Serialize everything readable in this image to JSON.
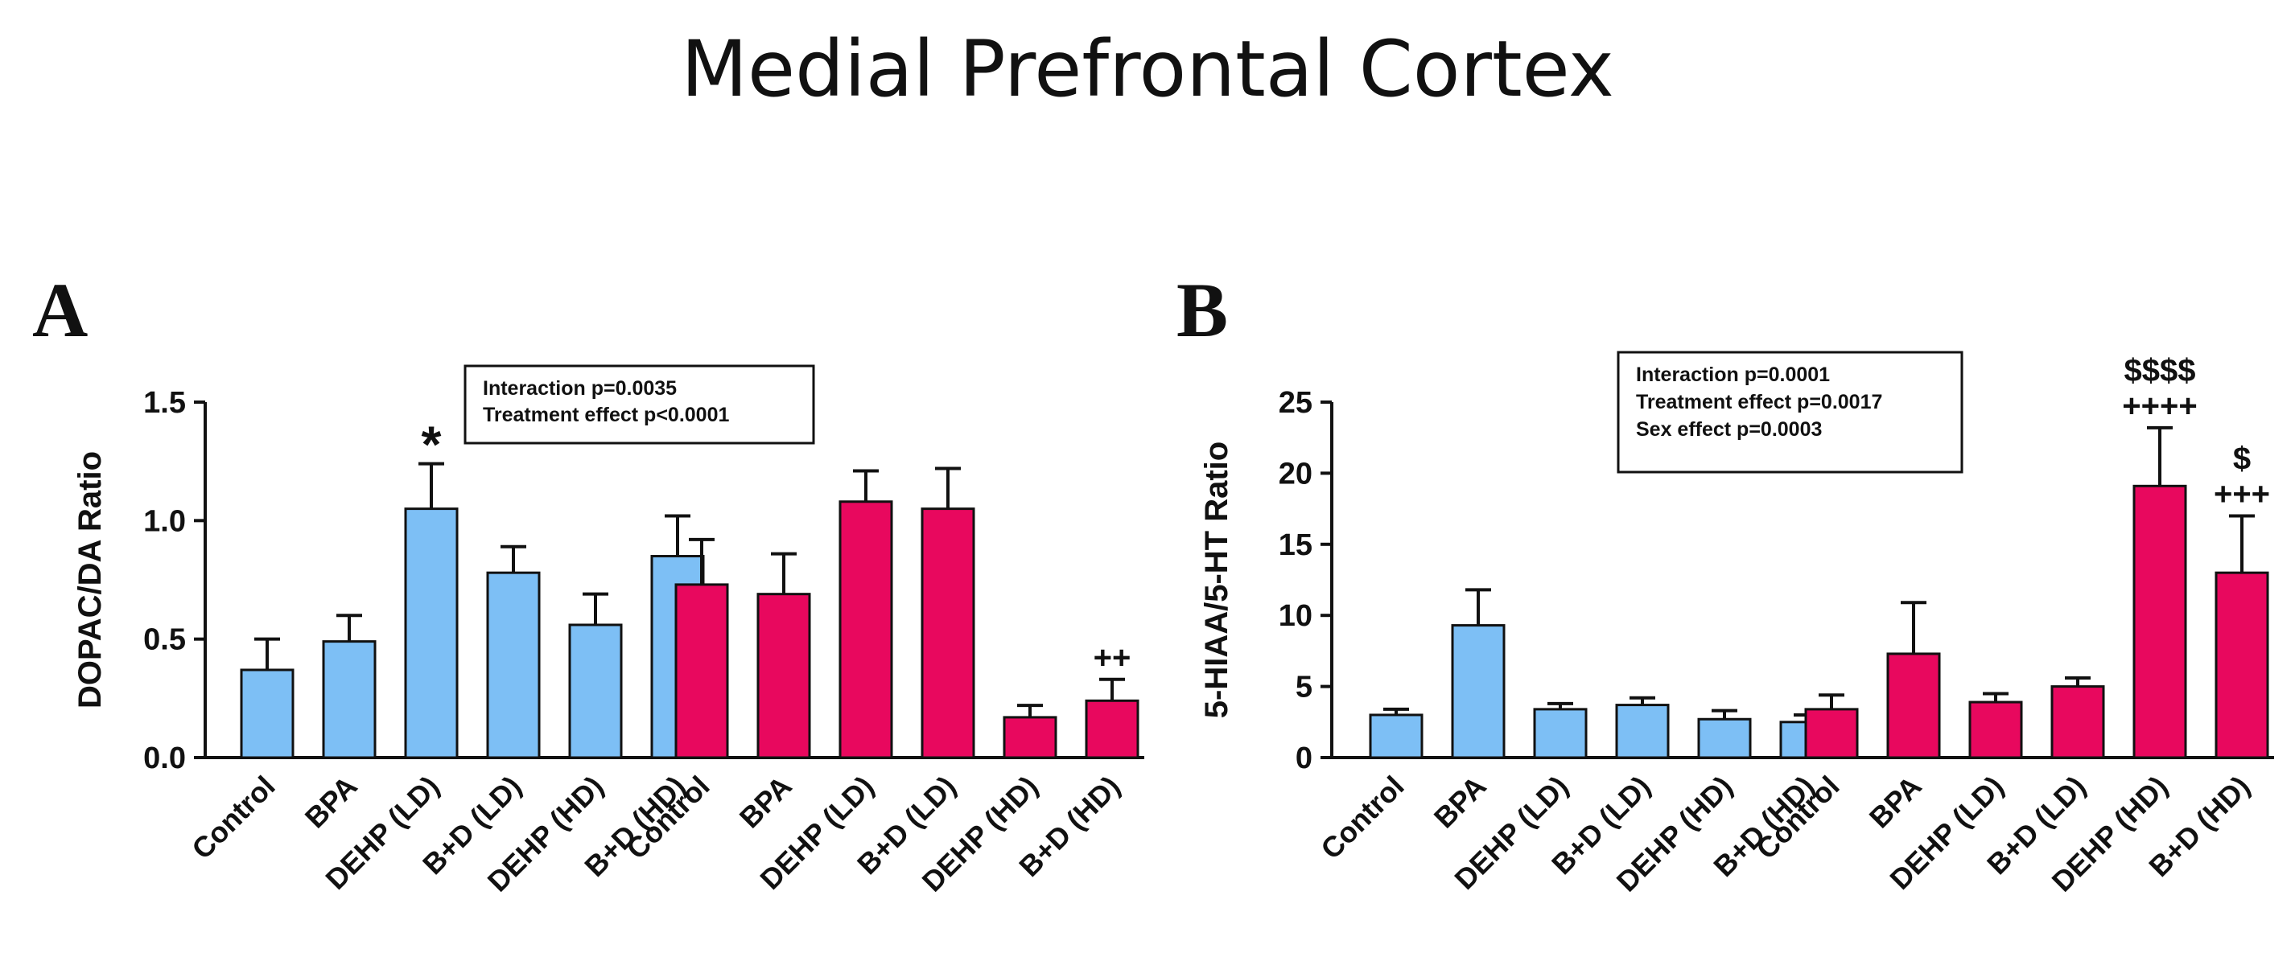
{
  "title": "Medial Prefrontal Cortex",
  "colors": {
    "male": "#7DBFF5",
    "female": "#E8085E"
  },
  "chart_data": [
    {
      "type": "bar",
      "panel": "A",
      "ylabel": "DOPAC/DA Ratio",
      "ylim": [
        0,
        1.5
      ],
      "yticks": [
        "0.0",
        "0.5",
        "1.0",
        "1.5"
      ],
      "yticks_values": [
        0,
        0.5,
        1.0,
        1.5
      ],
      "categories": [
        "Control",
        "BPA",
        "DEHP (LD)",
        "B+D (LD)",
        "DEHP (HD)",
        "B+D (HD)"
      ],
      "series": [
        {
          "name": "blue group",
          "color": "#7DBFF5",
          "values": [
            0.37,
            0.49,
            1.05,
            0.78,
            0.56,
            0.85
          ],
          "errors": [
            0.13,
            0.11,
            0.19,
            0.11,
            0.13,
            0.17
          ],
          "annotations": [
            "",
            "",
            "*",
            "",
            "",
            ""
          ]
        },
        {
          "name": "pink group",
          "color": "#E8085E",
          "values": [
            0.73,
            0.69,
            1.08,
            1.05,
            0.17,
            0.24
          ],
          "errors": [
            0.19,
            0.17,
            0.13,
            0.17,
            0.05,
            0.09
          ],
          "annotations": [
            "",
            "",
            "",
            "",
            "",
            "++"
          ]
        }
      ],
      "stats_box": [
        "Interaction p=0.0035",
        "Treatment effect p<0.0001"
      ]
    },
    {
      "type": "bar",
      "panel": "B",
      "ylabel": "5-HIAA/5-HT Ratio",
      "ylim": [
        0,
        25
      ],
      "yticks": [
        "0",
        "5",
        "10",
        "15",
        "20",
        "25"
      ],
      "yticks_values": [
        0,
        5,
        10,
        15,
        20,
        25
      ],
      "categories": [
        "Control",
        "BPA",
        "DEHP (LD)",
        "B+D (LD)",
        "DEHP (HD)",
        "B+D (HD)"
      ],
      "series": [
        {
          "name": "blue group",
          "color": "#7DBFF5",
          "values": [
            3.0,
            9.3,
            3.4,
            3.7,
            2.7,
            2.5
          ],
          "errors": [
            0.4,
            2.5,
            0.4,
            0.5,
            0.6,
            0.5
          ],
          "annotations": [
            "",
            "",
            "",
            "",
            "",
            ""
          ]
        },
        {
          "name": "pink group",
          "color": "#E8085E",
          "values": [
            3.4,
            7.3,
            3.9,
            5.0,
            19.1,
            13.0
          ],
          "errors": [
            1.0,
            3.6,
            0.6,
            0.6,
            4.1,
            4.0
          ],
          "annotations": [
            "",
            "",
            "",
            "",
            "$$$$\n++++",
            "$\n+++"
          ]
        }
      ],
      "stats_box": [
        "Interaction p=0.0001",
        "Treatment effect p=0.0017",
        "Sex effect p=0.0003"
      ]
    }
  ]
}
